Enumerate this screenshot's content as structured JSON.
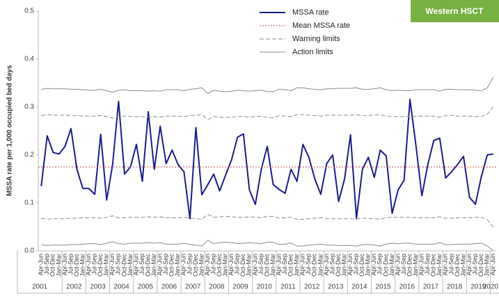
{
  "chart_data": {
    "type": "line",
    "badge": "Western HSCT",
    "ylabel": "MSSA rate per 1,000 occupied bed days",
    "ylim": [
      0,
      0.5
    ],
    "yticks": [
      {
        "value": 0,
        "label": "0.0"
      },
      0.1,
      0.2,
      0.3,
      0.4,
      0.5
    ],
    "categories": [
      "Apr-Jun",
      "Jul-Sep",
      "Oct-Dec",
      "Jan-Mar",
      "Apr-Jun",
      "Jul-Sep",
      "Oct-Dec",
      "Jan-Mar",
      "Apr-Jun",
      "Jul-Sep",
      "Oct-Dec",
      "Jan-Mar",
      "Apr-Jun",
      "Jul-Sep",
      "Oct-Dec",
      "Jan-Mar",
      "Apr-Jun",
      "Jul-Sep",
      "Oct-Dec",
      "Jan-Mar",
      "Apr-Jun",
      "Jul-Sep",
      "Oct-Dec",
      "Jan-Mar",
      "Apr-Jun",
      "Jul-Sep",
      "Oct-Dec",
      "Jan-Mar",
      "Apr-Jun",
      "Jul-Sep",
      "Oct-Dec",
      "Jan-Mar",
      "Apr-Jun",
      "Jul-Sep",
      "Oct-Dec",
      "Jan-Mar",
      "Apr-Jun",
      "Jul-Sep",
      "Oct-Dec",
      "Jan-Mar",
      "Apr-Jun",
      "Jul-Sep",
      "Oct-Dec",
      "Jan-Mar",
      "Apr-Jun",
      "Jul-Sep",
      "Oct-Dec",
      "Jan-Mar",
      "Apr-Jun",
      "Jul-Sep",
      "Oct-Dec",
      "Jan-Mar",
      "Apr-Jun",
      "Jul-Sep",
      "Oct-Dec",
      "Jan-Mar",
      "Apr-Jun",
      "Jul-Sep",
      "Oct-Dec",
      "Jan-Mar",
      "Apr-Jun",
      "Jul-Sep",
      "Oct-Dec",
      "Jan-Mar",
      "Apr-Jun",
      "Jul-Sep",
      "Oct-Dec",
      "Jan-Mar",
      "Apr-Jun",
      "Jul-Sep",
      "Oct-Dec",
      "Jan-Mar",
      "Apr-Jun",
      "Jul-Sep",
      "Oct-Dec",
      "Jan-Mar",
      "Apr-Jun"
    ],
    "years": [
      "2001",
      "2002",
      "2003",
      "2004",
      "2005",
      "2006",
      "2007",
      "2008",
      "2009",
      "2010",
      "2011",
      "2012",
      "2013",
      "2014",
      "2015",
      "2016",
      "2017",
      "2018",
      "2019",
      "2020"
    ],
    "series": [
      {
        "name": "MSSA rate",
        "color": "#1c1c8c",
        "style": "solid",
        "values": [
          0.135,
          0.24,
          0.205,
          0.202,
          0.218,
          0.255,
          0.17,
          0.13,
          0.13,
          0.118,
          0.243,
          0.106,
          0.18,
          0.312,
          0.16,
          0.175,
          0.222,
          0.145,
          0.29,
          0.17,
          0.26,
          0.182,
          0.21,
          0.18,
          0.165,
          0.067,
          0.257,
          0.117,
          0.138,
          0.16,
          0.125,
          0.158,
          0.19,
          0.237,
          0.244,
          0.127,
          0.097,
          0.17,
          0.218,
          0.138,
          0.128,
          0.12,
          0.17,
          0.145,
          0.222,
          0.195,
          0.15,
          0.118,
          0.182,
          0.2,
          0.103,
          0.15,
          0.242,
          0.068,
          0.17,
          0.195,
          0.153,
          0.21,
          0.198,
          0.078,
          0.127,
          0.147,
          0.316,
          0.22,
          0.115,
          0.18,
          0.23,
          0.235,
          0.152,
          0.165,
          0.18,
          0.197,
          0.112,
          0.097,
          0.155,
          0.2,
          0.202
        ]
      },
      {
        "name": "Mean MSSA rate",
        "color": "#c0504d",
        "style": "dotted",
        "value": 0.175
      },
      {
        "name": "Warning limits",
        "color": "#8c8c8c",
        "style": "dashed",
        "values": [
          0.282,
          0.284,
          0.283,
          0.283,
          0.283,
          0.282,
          0.282,
          0.281,
          0.281,
          0.281,
          0.282,
          0.28,
          0.277,
          0.281,
          0.281,
          0.28,
          0.28,
          0.28,
          0.279,
          0.28,
          0.279,
          0.281,
          0.281,
          0.281,
          0.28,
          0.282,
          0.283,
          0.284,
          0.274,
          0.28,
          0.279,
          0.278,
          0.279,
          0.28,
          0.28,
          0.279,
          0.28,
          0.281,
          0.278,
          0.278,
          0.282,
          0.281,
          0.28,
          0.284,
          0.284,
          0.283,
          0.282,
          0.281,
          0.283,
          0.283,
          0.283,
          0.283,
          0.283,
          0.284,
          0.282,
          0.282,
          0.283,
          0.284,
          0.281,
          0.28,
          0.28,
          0.28,
          0.28,
          0.281,
          0.281,
          0.281,
          0.281,
          0.279,
          0.282,
          0.282,
          0.281,
          0.281,
          0.281,
          0.28,
          0.28,
          0.285,
          0.3
        ],
        "lower": [
          0.068,
          0.066,
          0.067,
          0.067,
          0.067,
          0.068,
          0.068,
          0.069,
          0.069,
          0.069,
          0.068,
          0.07,
          0.073,
          0.069,
          0.069,
          0.07,
          0.07,
          0.07,
          0.071,
          0.07,
          0.071,
          0.069,
          0.069,
          0.069,
          0.07,
          0.068,
          0.067,
          0.066,
          0.076,
          0.07,
          0.071,
          0.072,
          0.071,
          0.07,
          0.07,
          0.071,
          0.07,
          0.069,
          0.072,
          0.072,
          0.068,
          0.069,
          0.07,
          0.066,
          0.066,
          0.067,
          0.068,
          0.069,
          0.067,
          0.067,
          0.067,
          0.067,
          0.067,
          0.066,
          0.068,
          0.068,
          0.067,
          0.066,
          0.069,
          0.07,
          0.07,
          0.07,
          0.07,
          0.069,
          0.069,
          0.069,
          0.069,
          0.071,
          0.068,
          0.068,
          0.069,
          0.069,
          0.069,
          0.07,
          0.07,
          0.065,
          0.05
        ]
      },
      {
        "name": "Action limits",
        "color": "#8c8c8c",
        "style": "solid-thin",
        "values": [
          0.337,
          0.339,
          0.338,
          0.338,
          0.338,
          0.337,
          0.337,
          0.336,
          0.335,
          0.335,
          0.337,
          0.334,
          0.331,
          0.335,
          0.336,
          0.334,
          0.334,
          0.334,
          0.333,
          0.334,
          0.333,
          0.336,
          0.336,
          0.336,
          0.334,
          0.337,
          0.338,
          0.34,
          0.328,
          0.335,
          0.333,
          0.332,
          0.333,
          0.335,
          0.334,
          0.333,
          0.334,
          0.335,
          0.332,
          0.332,
          0.337,
          0.336,
          0.334,
          0.34,
          0.34,
          0.338,
          0.337,
          0.336,
          0.338,
          0.338,
          0.339,
          0.339,
          0.339,
          0.34,
          0.337,
          0.337,
          0.338,
          0.34,
          0.336,
          0.334,
          0.335,
          0.334,
          0.334,
          0.336,
          0.336,
          0.336,
          0.336,
          0.333,
          0.337,
          0.337,
          0.336,
          0.336,
          0.336,
          0.335,
          0.334,
          0.34,
          0.362
        ],
        "lower": [
          0.013,
          0.011,
          0.012,
          0.012,
          0.012,
          0.013,
          0.013,
          0.014,
          0.015,
          0.015,
          0.013,
          0.016,
          0.019,
          0.015,
          0.014,
          0.016,
          0.016,
          0.016,
          0.017,
          0.016,
          0.017,
          0.014,
          0.014,
          0.014,
          0.016,
          0.013,
          0.012,
          0.01,
          0.022,
          0.015,
          0.017,
          0.018,
          0.017,
          0.015,
          0.016,
          0.017,
          0.016,
          0.015,
          0.018,
          0.018,
          0.013,
          0.014,
          0.016,
          0.01,
          0.01,
          0.012,
          0.013,
          0.014,
          0.012,
          0.012,
          0.011,
          0.011,
          0.011,
          0.01,
          0.013,
          0.013,
          0.012,
          0.01,
          0.014,
          0.016,
          0.015,
          0.016,
          0.016,
          0.014,
          0.014,
          0.014,
          0.014,
          0.017,
          0.013,
          0.013,
          0.014,
          0.014,
          0.014,
          0.015,
          0.016,
          0.01,
          0.0
        ]
      }
    ]
  }
}
